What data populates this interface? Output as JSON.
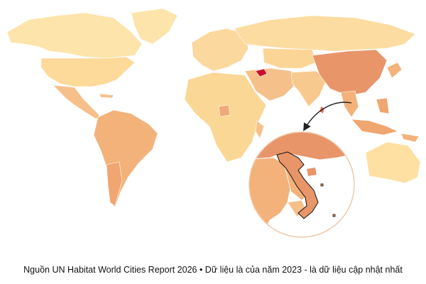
{
  "caption": "Nguồn UN Habitat World Cities Report 2026 • Dữ liệu là của năm 2023 - là dữ liệu cập nhật nhất"
}
